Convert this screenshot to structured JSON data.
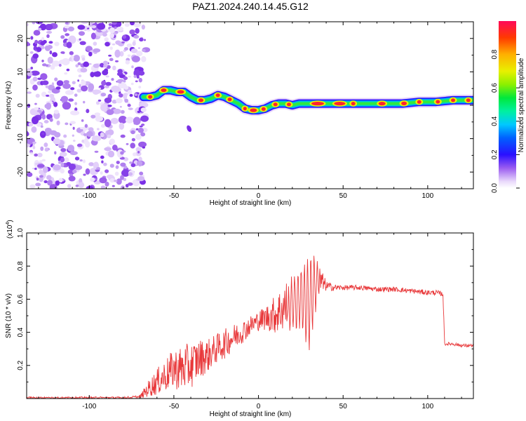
{
  "title": "PAZ1.2024.240.14.45.G12",
  "chart_data": [
    {
      "type": "heatmap",
      "title": "PAZ1.2024.240.14.45.G12",
      "xlabel": "Height of straight line (km)",
      "ylabel": "Frequency (Hz)",
      "xlim": [
        -137,
        127
      ],
      "ylim": [
        -25,
        25
      ],
      "xticks": [
        -100,
        -50,
        0,
        50,
        100
      ],
      "yticks": [
        -20,
        -10,
        0,
        10,
        20
      ],
      "noise_region_x": [
        -137,
        -68
      ],
      "ridge": {
        "x": [
          -68,
          -64,
          -60,
          -56,
          -52,
          -48,
          -44,
          -40,
          -36,
          -32,
          -28,
          -24,
          -20,
          -16,
          -12,
          -8,
          -4,
          0,
          4,
          8,
          12,
          16,
          20,
          24,
          28,
          35,
          45,
          55,
          65,
          75,
          85,
          95,
          105,
          115,
          127
        ],
        "freq": [
          2.5,
          2.5,
          3,
          4.5,
          4.5,
          4,
          4,
          2.5,
          1.5,
          1.5,
          2,
          3,
          2.5,
          1.5,
          0.5,
          -1,
          -1.5,
          -1.5,
          -1,
          0,
          0.5,
          0.5,
          0,
          0.5,
          0.5,
          0.5,
          0.5,
          0.5,
          0.5,
          0.5,
          0.5,
          1,
          1,
          1.5,
          1.5
        ]
      },
      "isolated_blob": {
        "x": -41,
        "freq": -7
      },
      "colorbar": {
        "label": "Normalized spectral amplitude",
        "ticks": [
          0.0,
          0.2,
          0.4,
          0.6,
          0.8
        ],
        "range": [
          0,
          1
        ]
      }
    },
    {
      "type": "line",
      "xlabel": "Height of straight line (km)",
      "ylabel": "SNR (10 * v/v)",
      "y_multiplier": "(x10",
      "y_multiplier_exp": "4",
      "xlim": [
        -137,
        127
      ],
      "ylim": [
        0,
        1.0
      ],
      "xticks": [
        -100,
        -50,
        0,
        50,
        100
      ],
      "yticks": [
        0.2,
        0.4,
        0.6,
        0.8,
        1.0
      ],
      "color": "#e8383a",
      "series": [
        {
          "x": [
            -137,
            -120,
            -100,
            -80,
            -70,
            -65,
            -60,
            -55,
            -50,
            -45,
            -40,
            -35,
            -30,
            -25,
            -20,
            -15,
            -10,
            -5,
            0,
            5,
            10,
            15,
            20,
            25,
            30,
            35,
            40,
            45,
            50,
            60,
            70,
            80,
            90,
            100,
            105,
            109,
            110,
            115,
            120,
            127
          ],
          "y": [
            0.005,
            0.005,
            0.005,
            0.005,
            0.01,
            0.06,
            0.1,
            0.14,
            0.18,
            0.18,
            0.2,
            0.24,
            0.26,
            0.3,
            0.33,
            0.37,
            0.4,
            0.44,
            0.47,
            0.49,
            0.51,
            0.55,
            0.58,
            0.6,
            0.58,
            0.72,
            0.68,
            0.67,
            0.67,
            0.67,
            0.66,
            0.66,
            0.65,
            0.64,
            0.64,
            0.63,
            0.33,
            0.33,
            0.32,
            0.32
          ],
          "amplitude": [
            0.006,
            0.006,
            0.006,
            0.006,
            0.01,
            0.05,
            0.08,
            0.1,
            0.12,
            0.14,
            0.14,
            0.12,
            0.1,
            0.09,
            0.09,
            0.08,
            0.07,
            0.06,
            0.06,
            0.08,
            0.12,
            0.15,
            0.18,
            0.22,
            0.34,
            0.12,
            0.03,
            0.02,
            0.015,
            0.015,
            0.015,
            0.015,
            0.015,
            0.015,
            0.015,
            0.015,
            0.01,
            0.01,
            0.01,
            0.01
          ]
        }
      ]
    }
  ]
}
